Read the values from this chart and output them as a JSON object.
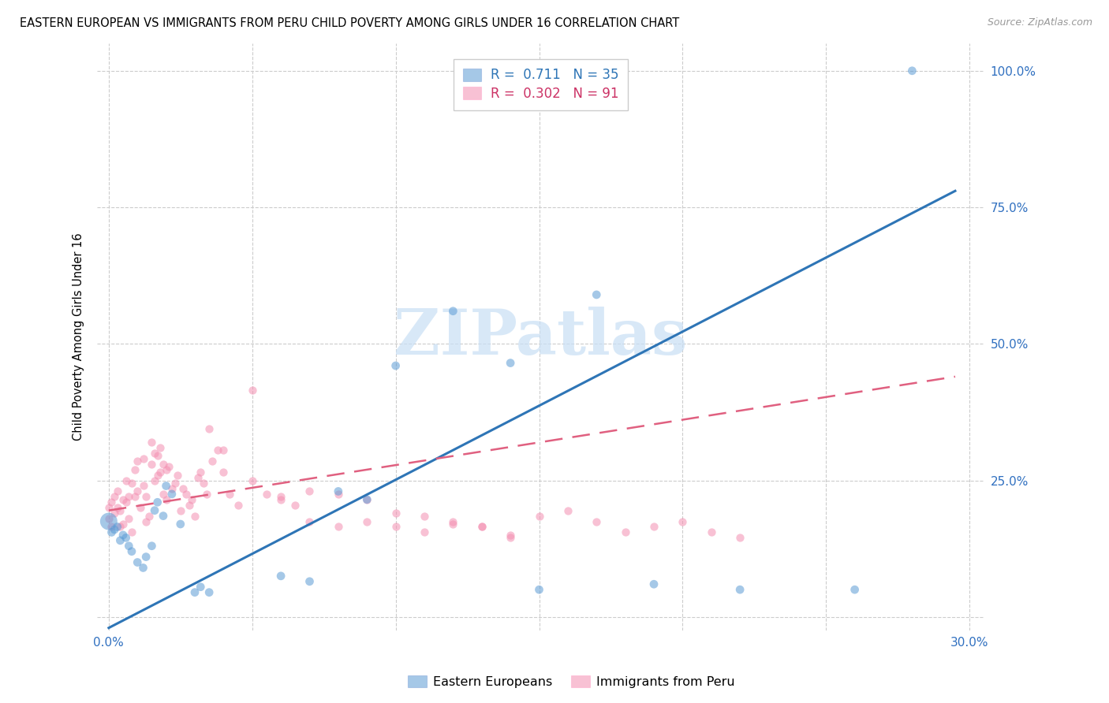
{
  "title": "EASTERN EUROPEAN VS IMMIGRANTS FROM PERU CHILD POVERTY AMONG GIRLS UNDER 16 CORRELATION CHART",
  "source": "Source: ZipAtlas.com",
  "ylabel": "Child Poverty Among Girls Under 16",
  "xlim": [
    0.0,
    0.3
  ],
  "ylim": [
    0.0,
    1.05
  ],
  "watermark": "ZIPatlas",
  "blue_color": "#5B9BD5",
  "pink_color": "#F48FB1",
  "blue_R": 0.711,
  "pink_R": 0.302,
  "blue_N": 35,
  "pink_N": 91,
  "blue_scatter_x": [
    0.0,
    0.001,
    0.002,
    0.003,
    0.004,
    0.005,
    0.006,
    0.007,
    0.008,
    0.01,
    0.012,
    0.013,
    0.015,
    0.016,
    0.017,
    0.019,
    0.02,
    0.022,
    0.025,
    0.03,
    0.032,
    0.035,
    0.06,
    0.07,
    0.08,
    0.09,
    0.1,
    0.12,
    0.14,
    0.15,
    0.17,
    0.19,
    0.22,
    0.26,
    0.28
  ],
  "blue_scatter_y": [
    0.175,
    0.155,
    0.16,
    0.165,
    0.14,
    0.15,
    0.145,
    0.13,
    0.12,
    0.1,
    0.09,
    0.11,
    0.13,
    0.195,
    0.21,
    0.185,
    0.24,
    0.225,
    0.17,
    0.045,
    0.055,
    0.045,
    0.075,
    0.065,
    0.23,
    0.215,
    0.46,
    0.56,
    0.465,
    0.05,
    0.59,
    0.06,
    0.05,
    0.05,
    1.0
  ],
  "blue_scatter_sizes": [
    250,
    60,
    60,
    60,
    60,
    60,
    60,
    60,
    60,
    60,
    60,
    60,
    60,
    60,
    60,
    60,
    60,
    60,
    60,
    60,
    60,
    60,
    60,
    60,
    60,
    60,
    60,
    60,
    60,
    60,
    60,
    60,
    60,
    60,
    60
  ],
  "pink_scatter_x": [
    0.0,
    0.0,
    0.001,
    0.001,
    0.002,
    0.002,
    0.003,
    0.003,
    0.004,
    0.004,
    0.005,
    0.005,
    0.006,
    0.006,
    0.007,
    0.007,
    0.008,
    0.008,
    0.009,
    0.009,
    0.01,
    0.01,
    0.011,
    0.012,
    0.012,
    0.013,
    0.013,
    0.014,
    0.015,
    0.015,
    0.016,
    0.016,
    0.017,
    0.017,
    0.018,
    0.018,
    0.019,
    0.019,
    0.02,
    0.02,
    0.021,
    0.022,
    0.023,
    0.024,
    0.025,
    0.026,
    0.027,
    0.028,
    0.029,
    0.03,
    0.031,
    0.032,
    0.033,
    0.034,
    0.035,
    0.036,
    0.038,
    0.04,
    0.042,
    0.045,
    0.05,
    0.055,
    0.06,
    0.065,
    0.07,
    0.08,
    0.09,
    0.1,
    0.11,
    0.12,
    0.13,
    0.14,
    0.15,
    0.16,
    0.17,
    0.18,
    0.19,
    0.2,
    0.21,
    0.22,
    0.05,
    0.04,
    0.06,
    0.07,
    0.08,
    0.09,
    0.1,
    0.11,
    0.12,
    0.13,
    0.14
  ],
  "pink_scatter_y": [
    0.18,
    0.2,
    0.165,
    0.21,
    0.19,
    0.22,
    0.2,
    0.23,
    0.165,
    0.195,
    0.17,
    0.215,
    0.21,
    0.25,
    0.18,
    0.22,
    0.155,
    0.245,
    0.22,
    0.27,
    0.23,
    0.285,
    0.2,
    0.24,
    0.29,
    0.175,
    0.22,
    0.185,
    0.28,
    0.32,
    0.25,
    0.3,
    0.295,
    0.26,
    0.265,
    0.31,
    0.225,
    0.28,
    0.215,
    0.27,
    0.275,
    0.235,
    0.245,
    0.26,
    0.195,
    0.235,
    0.225,
    0.205,
    0.215,
    0.185,
    0.255,
    0.265,
    0.245,
    0.225,
    0.345,
    0.285,
    0.305,
    0.265,
    0.225,
    0.205,
    0.415,
    0.225,
    0.215,
    0.205,
    0.175,
    0.165,
    0.175,
    0.165,
    0.155,
    0.175,
    0.165,
    0.145,
    0.185,
    0.195,
    0.175,
    0.155,
    0.165,
    0.175,
    0.155,
    0.145,
    0.25,
    0.305,
    0.22,
    0.23,
    0.225,
    0.215,
    0.19,
    0.185,
    0.17,
    0.165,
    0.15
  ],
  "blue_line_x0": 0.0,
  "blue_line_y0": -0.02,
  "blue_line_x1": 0.295,
  "blue_line_y1": 0.78,
  "pink_line_x0": 0.0,
  "pink_line_y0": 0.195,
  "pink_line_x1": 0.295,
  "pink_line_y1": 0.44
}
